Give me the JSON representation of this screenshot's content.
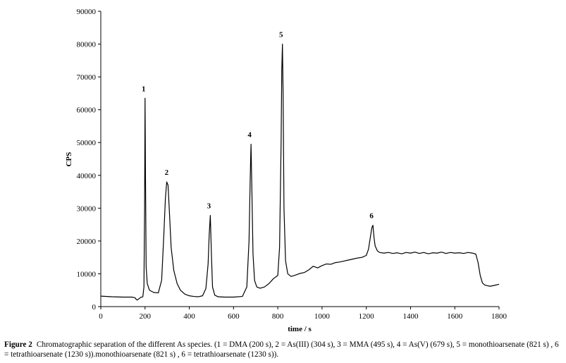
{
  "chart_data": {
    "type": "line",
    "title": "",
    "xlabel": "time / s",
    "ylabel": "CPS",
    "xlim": [
      0,
      1800
    ],
    "ylim": [
      0,
      90000
    ],
    "x_ticks": [
      0,
      200,
      400,
      600,
      800,
      1000,
      1200,
      1400,
      1600,
      1800
    ],
    "y_ticks": [
      0,
      10000,
      20000,
      30000,
      40000,
      50000,
      60000,
      70000,
      80000,
      90000
    ],
    "grid": false,
    "legend": "none",
    "line_color": "#000000",
    "series": [
      {
        "x": [
          0,
          50,
          100,
          140,
          155,
          160,
          165,
          180,
          190,
          195,
          198,
          200,
          202,
          205,
          210,
          220,
          240,
          260,
          275,
          285,
          292,
          298,
          304,
          310,
          318,
          330,
          345,
          360,
          380,
          400,
          420,
          440,
          460,
          475,
          485,
          490,
          495,
          500,
          505,
          515,
          530,
          560,
          600,
          640,
          660,
          670,
          675,
          679,
          683,
          688,
          695,
          705,
          720,
          740,
          760,
          780,
          800,
          808,
          815,
          818,
          821,
          824,
          828,
          835,
          845,
          860,
          880,
          900,
          920,
          940,
          960,
          980,
          1000,
          1020,
          1040,
          1060,
          1080,
          1100,
          1120,
          1140,
          1160,
          1180,
          1200,
          1210,
          1218,
          1225,
          1230,
          1235,
          1240,
          1250,
          1260,
          1280,
          1300,
          1320,
          1340,
          1360,
          1380,
          1400,
          1420,
          1440,
          1460,
          1480,
          1500,
          1520,
          1540,
          1560,
          1580,
          1600,
          1620,
          1640,
          1660,
          1680,
          1695,
          1705,
          1715,
          1725,
          1735,
          1745,
          1760,
          1780,
          1800
        ],
        "y": [
          3200,
          3000,
          2900,
          2900,
          2700,
          2200,
          2000,
          2800,
          3000,
          6000,
          30000,
          63500,
          40000,
          12000,
          7000,
          5000,
          4300,
          4200,
          8000,
          22000,
          33000,
          38000,
          37000,
          29000,
          18000,
          11000,
          7000,
          5000,
          3800,
          3300,
          3100,
          3000,
          3300,
          5500,
          13000,
          22000,
          27800,
          16000,
          6000,
          3500,
          3000,
          2900,
          2900,
          3100,
          6000,
          20000,
          38000,
          49500,
          35000,
          16000,
          8000,
          6000,
          5600,
          6000,
          7000,
          8500,
          9500,
          18000,
          50000,
          72000,
          80000,
          65000,
          30000,
          14000,
          10000,
          9200,
          9600,
          10100,
          10400,
          11200,
          12300,
          11800,
          12500,
          13000,
          12900,
          13400,
          13600,
          13900,
          14200,
          14500,
          14800,
          15000,
          15600,
          17500,
          21000,
          24000,
          24800,
          21000,
          18500,
          17000,
          16500,
          16300,
          16500,
          16200,
          16400,
          16100,
          16500,
          16300,
          16600,
          16200,
          16500,
          16100,
          16400,
          16300,
          16600,
          16200,
          16500,
          16300,
          16400,
          16200,
          16500,
          16300,
          16000,
          13500,
          9500,
          7200,
          6600,
          6400,
          6200,
          6500,
          6800
        ]
      }
    ],
    "annotations": [
      {
        "text": "1",
        "x": 200,
        "y": 63500
      },
      {
        "text": "2",
        "x": 304,
        "y": 38000
      },
      {
        "text": "3",
        "x": 495,
        "y": 27800
      },
      {
        "text": "4",
        "x": 679,
        "y": 49500
      },
      {
        "text": "5",
        "x": 821,
        "y": 80000
      },
      {
        "text": "6",
        "x": 1230,
        "y": 24800
      }
    ]
  },
  "caption": {
    "label": "Figure 2",
    "text": "Chromatographic separation of the different As species. (1 = DMA (200 s), 2 = As(III) (304 s), 3 = MMA (495 s), 4 = As(V) (679 s), 5 = monothioarsenate (821 s) , 6 = tetrathioarsenate (1230 s)).monothioarsenate (821 s) , 6 = tetrathioarsenate (1230 s))."
  }
}
